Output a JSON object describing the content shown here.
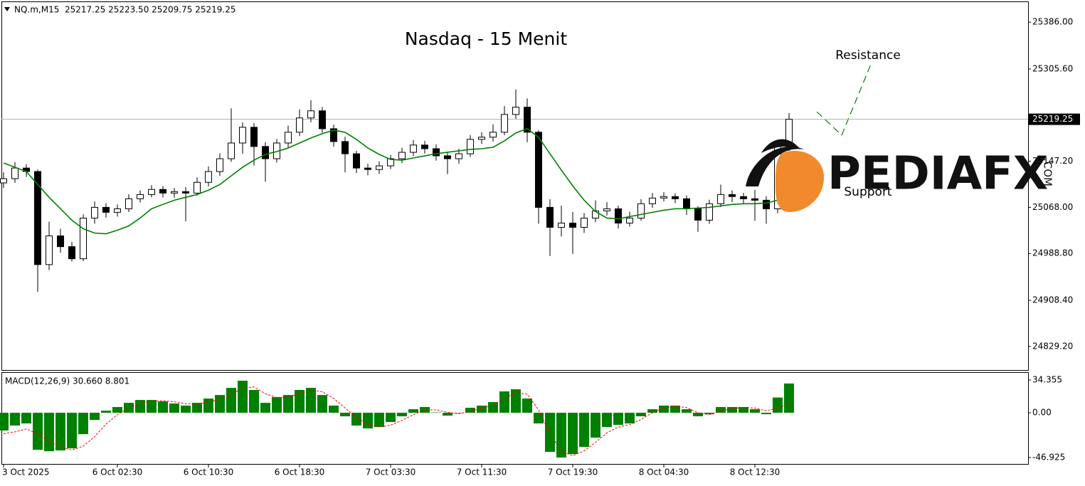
{
  "chart_data": [
    {
      "type": "candlestick",
      "title": "Nasdaq - 15 Menit",
      "info": "NQ.m,M15  25217.25 25223.50 25209.75 25219.25",
      "categories": [
        "3 Oct 2025",
        null,
        null,
        null,
        null,
        null,
        null,
        null,
        null,
        null,
        "6 Oct 02:30",
        null,
        null,
        null,
        null,
        null,
        null,
        null,
        "6 Oct 10:30",
        null,
        null,
        null,
        null,
        null,
        null,
        null,
        "6 Oct 18:30",
        null,
        null,
        null,
        null,
        null,
        null,
        null,
        "7 Oct 03:30",
        null,
        null,
        null,
        null,
        null,
        null,
        null,
        "7 Oct 11:30",
        null,
        null,
        null,
        null,
        null,
        null,
        null,
        "7 Oct 19:30",
        null,
        null,
        null,
        null,
        null,
        null,
        null,
        "8 Oct 04:30",
        null,
        null,
        null,
        null,
        null,
        null,
        null,
        "8 Oct 12:30",
        null,
        null,
        null
      ],
      "open": [
        25110.0,
        25117.25,
        25135.5,
        25129.5,
        24969.75,
        25019.0,
        25000.5,
        24979.75,
        25049.5,
        25068.0,
        25059.5,
        25065.5,
        25082.75,
        25090.0,
        25098.75,
        25092.5,
        25095.0,
        25092.5,
        25111.0,
        25129.5,
        25151.5,
        25178.5,
        25205.5,
        25172.5,
        25151.5,
        25178.5,
        25197.0,
        25221.5,
        25233.75,
        25203.0,
        25181.0,
        25160.0,
        25135.5,
        25133.0,
        25139.25,
        25151.5,
        25162.5,
        25175.0,
        25168.75,
        25156.5,
        25151.5,
        25160.0,
        25184.75,
        25188.5,
        25197.0,
        25227.5,
        25240.0,
        25197.0,
        25068.0,
        25033.75,
        25041.0,
        25033.75,
        25049.5,
        25062.0,
        25065.5,
        25041.0,
        25049.5,
        25074.25,
        25084.0,
        25086.5,
        25082.75,
        25065.5,
        25046.0,
        25074.25,
        25090.0,
        25086.5,
        25082.75,
        25080.25,
        25065.5,
        25172.5
      ],
      "high": [
        25128.0,
        25146.0,
        25141.75,
        25133.0,
        25043.5,
        25031.25,
        25008.75,
        25056.0,
        25078.25,
        25075.0,
        25073.0,
        25090.5,
        25097.25,
        25106.0,
        25104.5,
        25101.25,
        25103.0,
        25119.5,
        25138.25,
        25160.75,
        25238.0,
        25214.0,
        25212.75,
        25180.0,
        25185.5,
        25208.25,
        25236.0,
        25252.0,
        25240.5,
        25210.0,
        25189.25,
        25165.0,
        25142.75,
        25147.0,
        25158.0,
        25170.25,
        25183.5,
        25182.0,
        25176.0,
        25163.0,
        25168.5,
        25192.0,
        25197.0,
        25210.75,
        25242.0,
        25270.5,
        25255.0,
        25200.25,
        25082.0,
        25071.0,
        25060.0,
        25058.25,
        25080.0,
        25077.25,
        25071.0,
        25060.5,
        25082.0,
        25092.75,
        25094.0,
        25092.0,
        25088.5,
        25070.0,
        25081.0,
        25107.0,
        25097.25,
        25093.0,
        25098.0,
        25087.0,
        25180.0,
        25230.0
      ],
      "low": [
        25101.5,
        25110.0,
        25120.25,
        24923.0,
        24960.25,
        24990.0,
        24975.0,
        24975.5,
        25040.0,
        25050.25,
        25052.0,
        25060.0,
        25076.5,
        25085.25,
        25085.0,
        25084.5,
        25044.0,
        25088.0,
        25104.0,
        25122.0,
        25146.25,
        25160.0,
        25140.0,
        25112.0,
        25145.0,
        25170.0,
        25190.25,
        25214.0,
        25196.25,
        25172.0,
        25128.0,
        25127.0,
        25123.0,
        25125.5,
        25133.75,
        25144.0,
        25156.0,
        25160.5,
        25148.25,
        25125.0,
        25143.0,
        25154.5,
        25177.0,
        25181.0,
        25192.25,
        25220.0,
        25180.0,
        25040.0,
        24984.5,
        25018.0,
        24988.0,
        25024.0,
        25042.5,
        25054.0,
        25032.0,
        25035.0,
        25045.0,
        25067.0,
        25078.25,
        25075.0,
        25055.0,
        25026.0,
        25040.0,
        25068.5,
        25077.0,
        25075.0,
        25045.0,
        25040.0,
        25058.0,
        25165.0
      ],
      "close": [
        25117.25,
        25135.5,
        25129.5,
        24969.75,
        25019.0,
        25000.5,
        24979.75,
        25049.5,
        25068.0,
        25059.5,
        25065.5,
        25082.75,
        25090.0,
        25098.75,
        25092.5,
        25095.0,
        25092.5,
        25111.0,
        25129.5,
        25151.5,
        25178.5,
        25205.5,
        25172.5,
        25151.5,
        25178.5,
        25197.0,
        25221.5,
        25233.75,
        25203.0,
        25181.0,
        25160.0,
        25135.5,
        25133.0,
        25139.25,
        25151.5,
        25162.5,
        25175.0,
        25168.75,
        25156.5,
        25151.5,
        25160.0,
        25184.75,
        25188.5,
        25197.0,
        25227.5,
        25240.0,
        25197.0,
        25068.0,
        25033.75,
        25041.0,
        25033.75,
        25049.5,
        25062.0,
        25065.5,
        25041.0,
        25049.5,
        25074.25,
        25084.0,
        25086.5,
        25082.75,
        25065.5,
        25046.0,
        25074.25,
        25090.0,
        25086.5,
        25082.75,
        25080.25,
        25065.5,
        25172.5,
        25219.25
      ],
      "ma": {
        "color": "#008000",
        "values": [
          25144.2,
          25136.8,
          25129.4,
          25107.3,
          25085.2,
          25065.6,
          25046.0,
          25031.2,
          25023.9,
          25022.6,
          25028.8,
          25036.1,
          25049.6,
          25065.6,
          25073.0,
          25080.3,
          25085.2,
          25090.1,
          25097.5,
          25107.3,
          25122.1,
          25136.8,
          25149.1,
          25158.9,
          25163.8,
          25169.9,
          25178.5,
          25187.1,
          25194.5,
          25200.6,
          25196.9,
          25184.7,
          25169.9,
          25158.9,
          25150.3,
          25149.1,
          25152.8,
          25156.4,
          25160.1,
          25162.6,
          25165.0,
          25167.5,
          25168.7,
          25171.2,
          25182.2,
          25195.7,
          25203.1,
          25188.4,
          25160.1,
          25131.9,
          25104.9,
          25080.3,
          25060.7,
          25049.6,
          25048.4,
          25052.1,
          25055.8,
          25059.5,
          25063.1,
          25065.6,
          25065.6,
          25066.8,
          25068.0,
          25070.5,
          25073.0,
          25074.2,
          25074.2,
          25075.4,
          25080.3,
          25088.9
        ]
      },
      "last_price": 25219.25,
      "annotations": [
        "Resistance",
        "Support"
      ],
      "ylim": [
        24788.7,
        25421.6
      ],
      "yticks": [
        {
          "value": 25386,
          "label": "25386.00"
        },
        {
          "value": 25305.6,
          "label": "25305.60"
        },
        {
          "value": 25147.2,
          "label": "25147.20"
        },
        {
          "value": 25068,
          "label": "25068.00"
        },
        {
          "value": 24988.8,
          "label": "24988.80"
        },
        {
          "value": 24908.4,
          "label": "24908.40"
        },
        {
          "value": 24829.2,
          "label": "24829.20"
        }
      ]
    },
    {
      "type": "macd",
      "title": "MACD(12,26,9) 30.660 8.801",
      "histogram": {
        "color": "#008000",
        "values": [
          -18.6,
          -13.4,
          -11.2,
          -38.8,
          -40.3,
          -39.5,
          -37.3,
          -22.4,
          -7.5,
          2.2,
          6.0,
          10.4,
          13.4,
          13.4,
          11.9,
          9.7,
          7.5,
          10.4,
          14.9,
          18.6,
          26.1,
          33.6,
          23.9,
          10.4,
          16.4,
          18.6,
          23.9,
          26.1,
          18.6,
          7.5,
          -3.7,
          -13.4,
          -16.4,
          -14.9,
          -9.7,
          -3.7,
          3.7,
          6.0,
          0.4,
          -3.0,
          -0.4,
          5.2,
          7.5,
          11.2,
          22.4,
          24.6,
          14.9,
          -11.2,
          -41.0,
          -46.9,
          -43.3,
          -35.8,
          -26.1,
          -14.9,
          -12.7,
          -11.2,
          -3.7,
          3.7,
          7.5,
          7.5,
          3.7,
          -3.7,
          -1.5,
          6.0,
          6.0,
          6.0,
          3.7,
          -1.5,
          16.0,
          30.66
        ]
      },
      "signal": {
        "color": "#ff0000",
        "values": [
          -22,
          -20,
          -17,
          -22,
          -30,
          -36,
          -39,
          -35,
          -25,
          -12,
          -2,
          5,
          10,
          12,
          12.5,
          11.5,
          9.5,
          9,
          11,
          14,
          19,
          26,
          27,
          20,
          16,
          16.5,
          20,
          23.5,
          22,
          15,
          5,
          -5,
          -12,
          -15,
          -13,
          -8,
          -2,
          3,
          3,
          0.5,
          -1,
          1.5,
          4.5,
          8,
          15,
          21,
          19.5,
          3,
          -22,
          -40,
          -45,
          -40,
          -31,
          -21,
          -15,
          -12.5,
          -7,
          0,
          5,
          7,
          5.5,
          0,
          -2,
          2,
          4.5,
          5.5,
          5,
          2,
          5,
          8.801
        ]
      },
      "ylim": [
        -53.64,
        42.56
      ],
      "yticks": [
        34.355,
        {
          "value": 0,
          "label": "0.00"
        },
        -46.925
      ]
    }
  ],
  "logo": {
    "text": "PEDIAFX",
    "suffix": ".COM"
  }
}
